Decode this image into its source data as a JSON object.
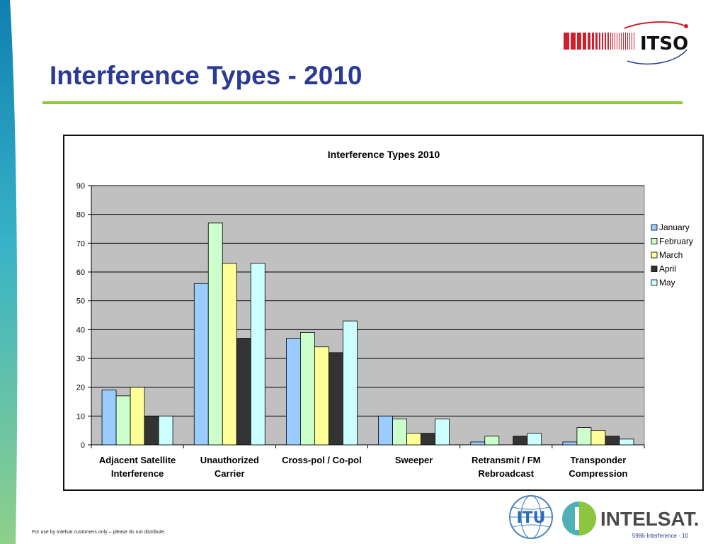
{
  "slide": {
    "title": "Interference Types - 2010",
    "footer_note": "For use by Intelsat customers only – please do not distribute.",
    "slide_number": "5986-Interference - 10"
  },
  "logos": {
    "itso": "ITSO",
    "itu": "ITU",
    "intelsat": "INTELSAT."
  },
  "colors": {
    "title": "#2b3a94",
    "rule": "#8dc63f",
    "plot_area": "#c0c0c0"
  },
  "chart_data": {
    "type": "bar",
    "title": "Interference Types 2010",
    "xlabel": "",
    "ylabel": "",
    "ylim": [
      0,
      90
    ],
    "yticks": [
      0,
      10,
      20,
      30,
      40,
      50,
      60,
      70,
      80,
      90
    ],
    "grid": true,
    "legend_position": "right",
    "categories": [
      [
        "Adjacent Satellite",
        "Interference"
      ],
      [
        "Unauthorized",
        "Carrier"
      ],
      [
        "Cross-pol / Co-pol"
      ],
      [
        "Sweeper"
      ],
      [
        "Retransmit / FM",
        "Rebroadcast"
      ],
      [
        "Transponder",
        "Compression"
      ]
    ],
    "series": [
      {
        "name": "January",
        "color": "#99ccff",
        "values": [
          19,
          56,
          37,
          10,
          1,
          1
        ]
      },
      {
        "name": "February",
        "color": "#ccffcc",
        "values": [
          17,
          77,
          39,
          9,
          3,
          6
        ]
      },
      {
        "name": "March",
        "color": "#ffff99",
        "values": [
          20,
          63,
          34,
          4,
          0,
          5
        ]
      },
      {
        "name": "April",
        "color": "#333333",
        "values": [
          10,
          37,
          32,
          4,
          3,
          3
        ]
      },
      {
        "name": "May",
        "color": "#ccffff",
        "values": [
          10,
          63,
          43,
          9,
          4,
          2
        ]
      }
    ]
  }
}
